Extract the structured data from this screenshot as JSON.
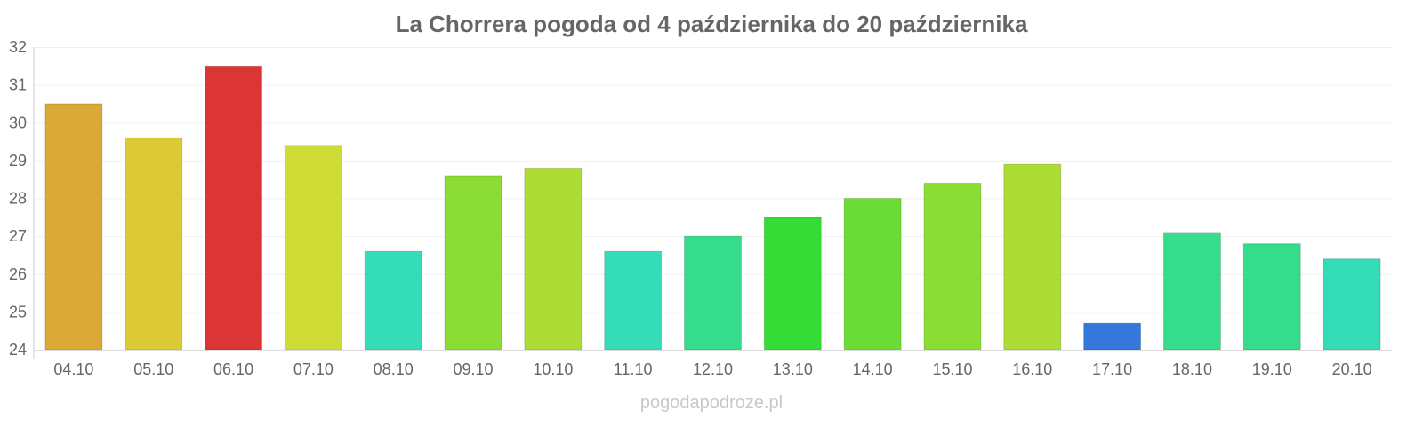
{
  "chart_data": {
    "type": "bar",
    "title": "La Chorrera pogoda od 4 października do 20 października",
    "xlabel": "",
    "ylabel": "",
    "ylim": [
      24,
      32
    ],
    "yticks": [
      24,
      25,
      26,
      27,
      28,
      29,
      30,
      31,
      32
    ],
    "grid": true,
    "legend": "none",
    "categories": [
      "04.10",
      "05.10",
      "06.10",
      "07.10",
      "08.10",
      "09.10",
      "10.10",
      "11.10",
      "12.10",
      "13.10",
      "14.10",
      "15.10",
      "16.10",
      "17.10",
      "18.10",
      "19.10",
      "20.10"
    ],
    "values": [
      30.5,
      29.6,
      31.5,
      29.4,
      26.6,
      28.6,
      28.8,
      26.6,
      27.0,
      27.5,
      28.0,
      28.4,
      28.9,
      24.7,
      27.1,
      26.8,
      26.4
    ],
    "colors": [
      "#dba935",
      "#dcca35",
      "#dc3535",
      "#cfdc35",
      "#35dcb8",
      "#8bdc35",
      "#addc35",
      "#35dcb8",
      "#35dc8b",
      "#35dc35",
      "#6adc35",
      "#8bdc35",
      "#addc35",
      "#3578dc",
      "#35dc8b",
      "#35dc8b",
      "#35dcb8"
    ]
  },
  "watermark": "pogodapodroze.pl"
}
